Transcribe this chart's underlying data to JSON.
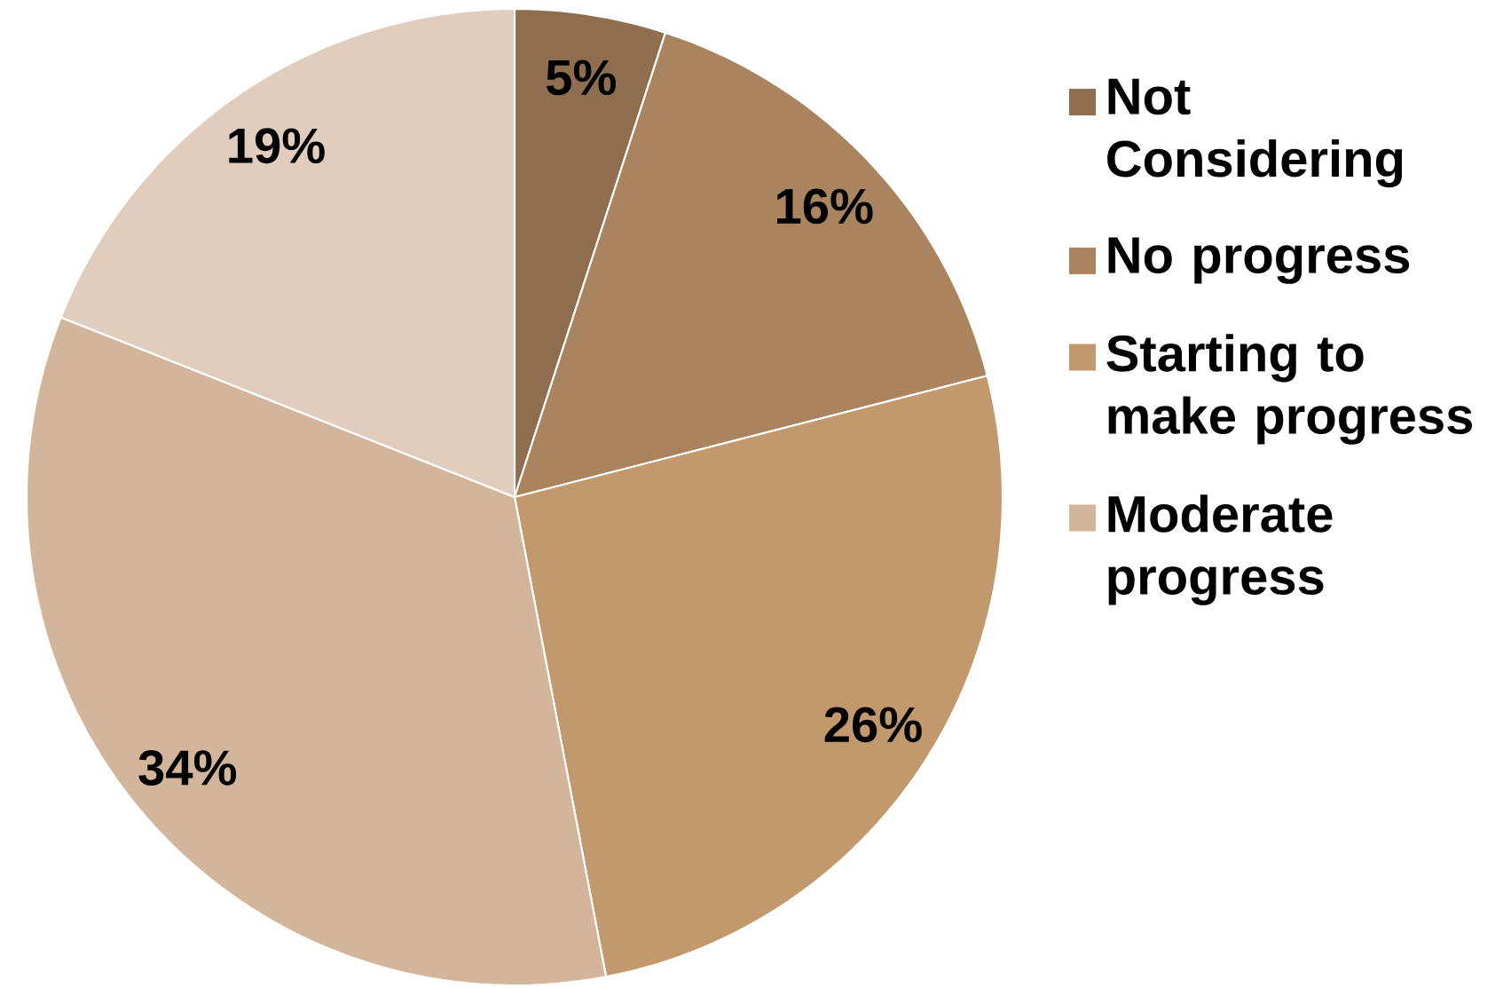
{
  "chart_data": {
    "type": "pie",
    "categories": [
      "Not Considering",
      "No progress",
      "Starting to make progress",
      "Moderate progress",
      null
    ],
    "values": [
      5,
      16,
      26,
      34,
      19
    ],
    "value_labels": [
      "5%",
      "16%",
      "26%",
      "34%",
      "19%"
    ],
    "colors": [
      "#8f6e4f",
      "#a9845f",
      "#c2986d",
      "#d3b59b",
      "#e1cdbd"
    ],
    "legend": "right"
  }
}
